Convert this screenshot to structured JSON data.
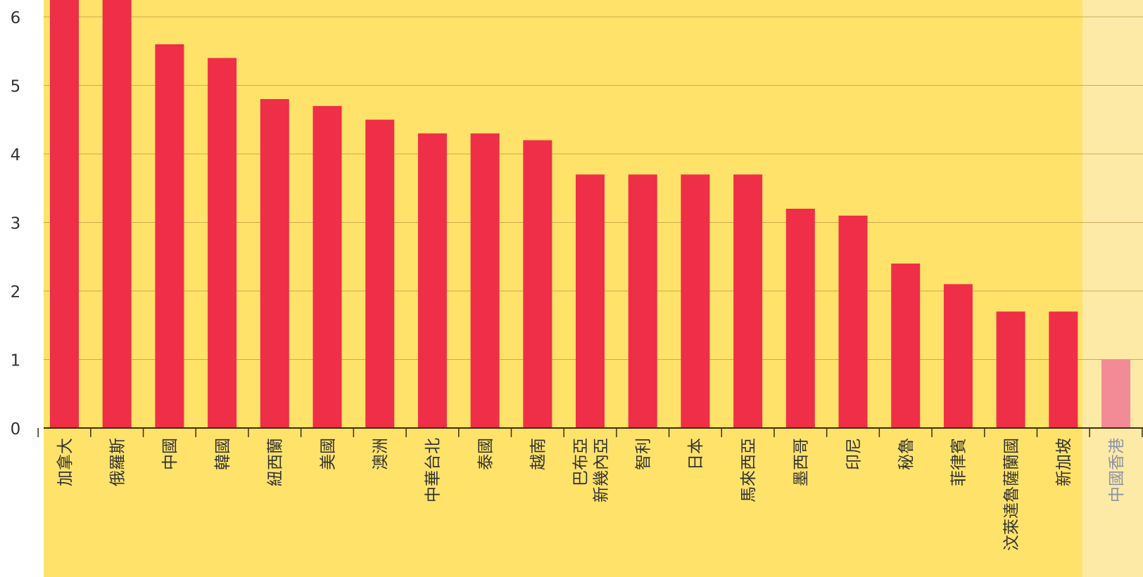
{
  "colors": {
    "page_background": "#ffffff",
    "plot_background": "#ffe26a",
    "highlight_band": "#fdeaa6",
    "bar": "#ef2e47",
    "bar_highlight": "#f28b96",
    "gridline": "#b59a40",
    "axis_line": "#3a3010",
    "tick_text": "#333333",
    "highlight_text": "#8a93a8"
  },
  "chart_data": {
    "type": "bar",
    "title": "",
    "xlabel": "",
    "ylabel": "",
    "ylim": [
      0,
      6.25
    ],
    "y_ticks": [
      {
        "value": 0,
        "label": "0"
      },
      {
        "value": 1,
        "label": "1"
      },
      {
        "value": 2,
        "label": "2"
      },
      {
        "value": 3,
        "label": "3"
      },
      {
        "value": 4,
        "label": "4"
      },
      {
        "value": 5,
        "label": "5"
      },
      {
        "value": 6,
        "label": "6"
      }
    ],
    "grid": true,
    "highlighted_category": "中國香港",
    "categories": [
      "加拿大",
      "俄羅斯",
      "中國",
      "韓國",
      "紐西蘭",
      "美國",
      "澳洲",
      "中華台北",
      "泰國",
      "越南",
      "巴布亞\n新幾內亞",
      "智利",
      "日本",
      "馬來西亞",
      "墨西哥",
      "印尼",
      "秘魯",
      "菲律賓",
      "汶萊達魯薩蘭國",
      "新加坡",
      "中國香港"
    ],
    "values": [
      6.4,
      6.4,
      5.6,
      5.4,
      4.8,
      4.7,
      4.5,
      4.3,
      4.3,
      4.2,
      3.7,
      3.7,
      3.7,
      3.7,
      3.2,
      3.1,
      2.4,
      2.1,
      1.7,
      1.7,
      1.0
    ]
  }
}
